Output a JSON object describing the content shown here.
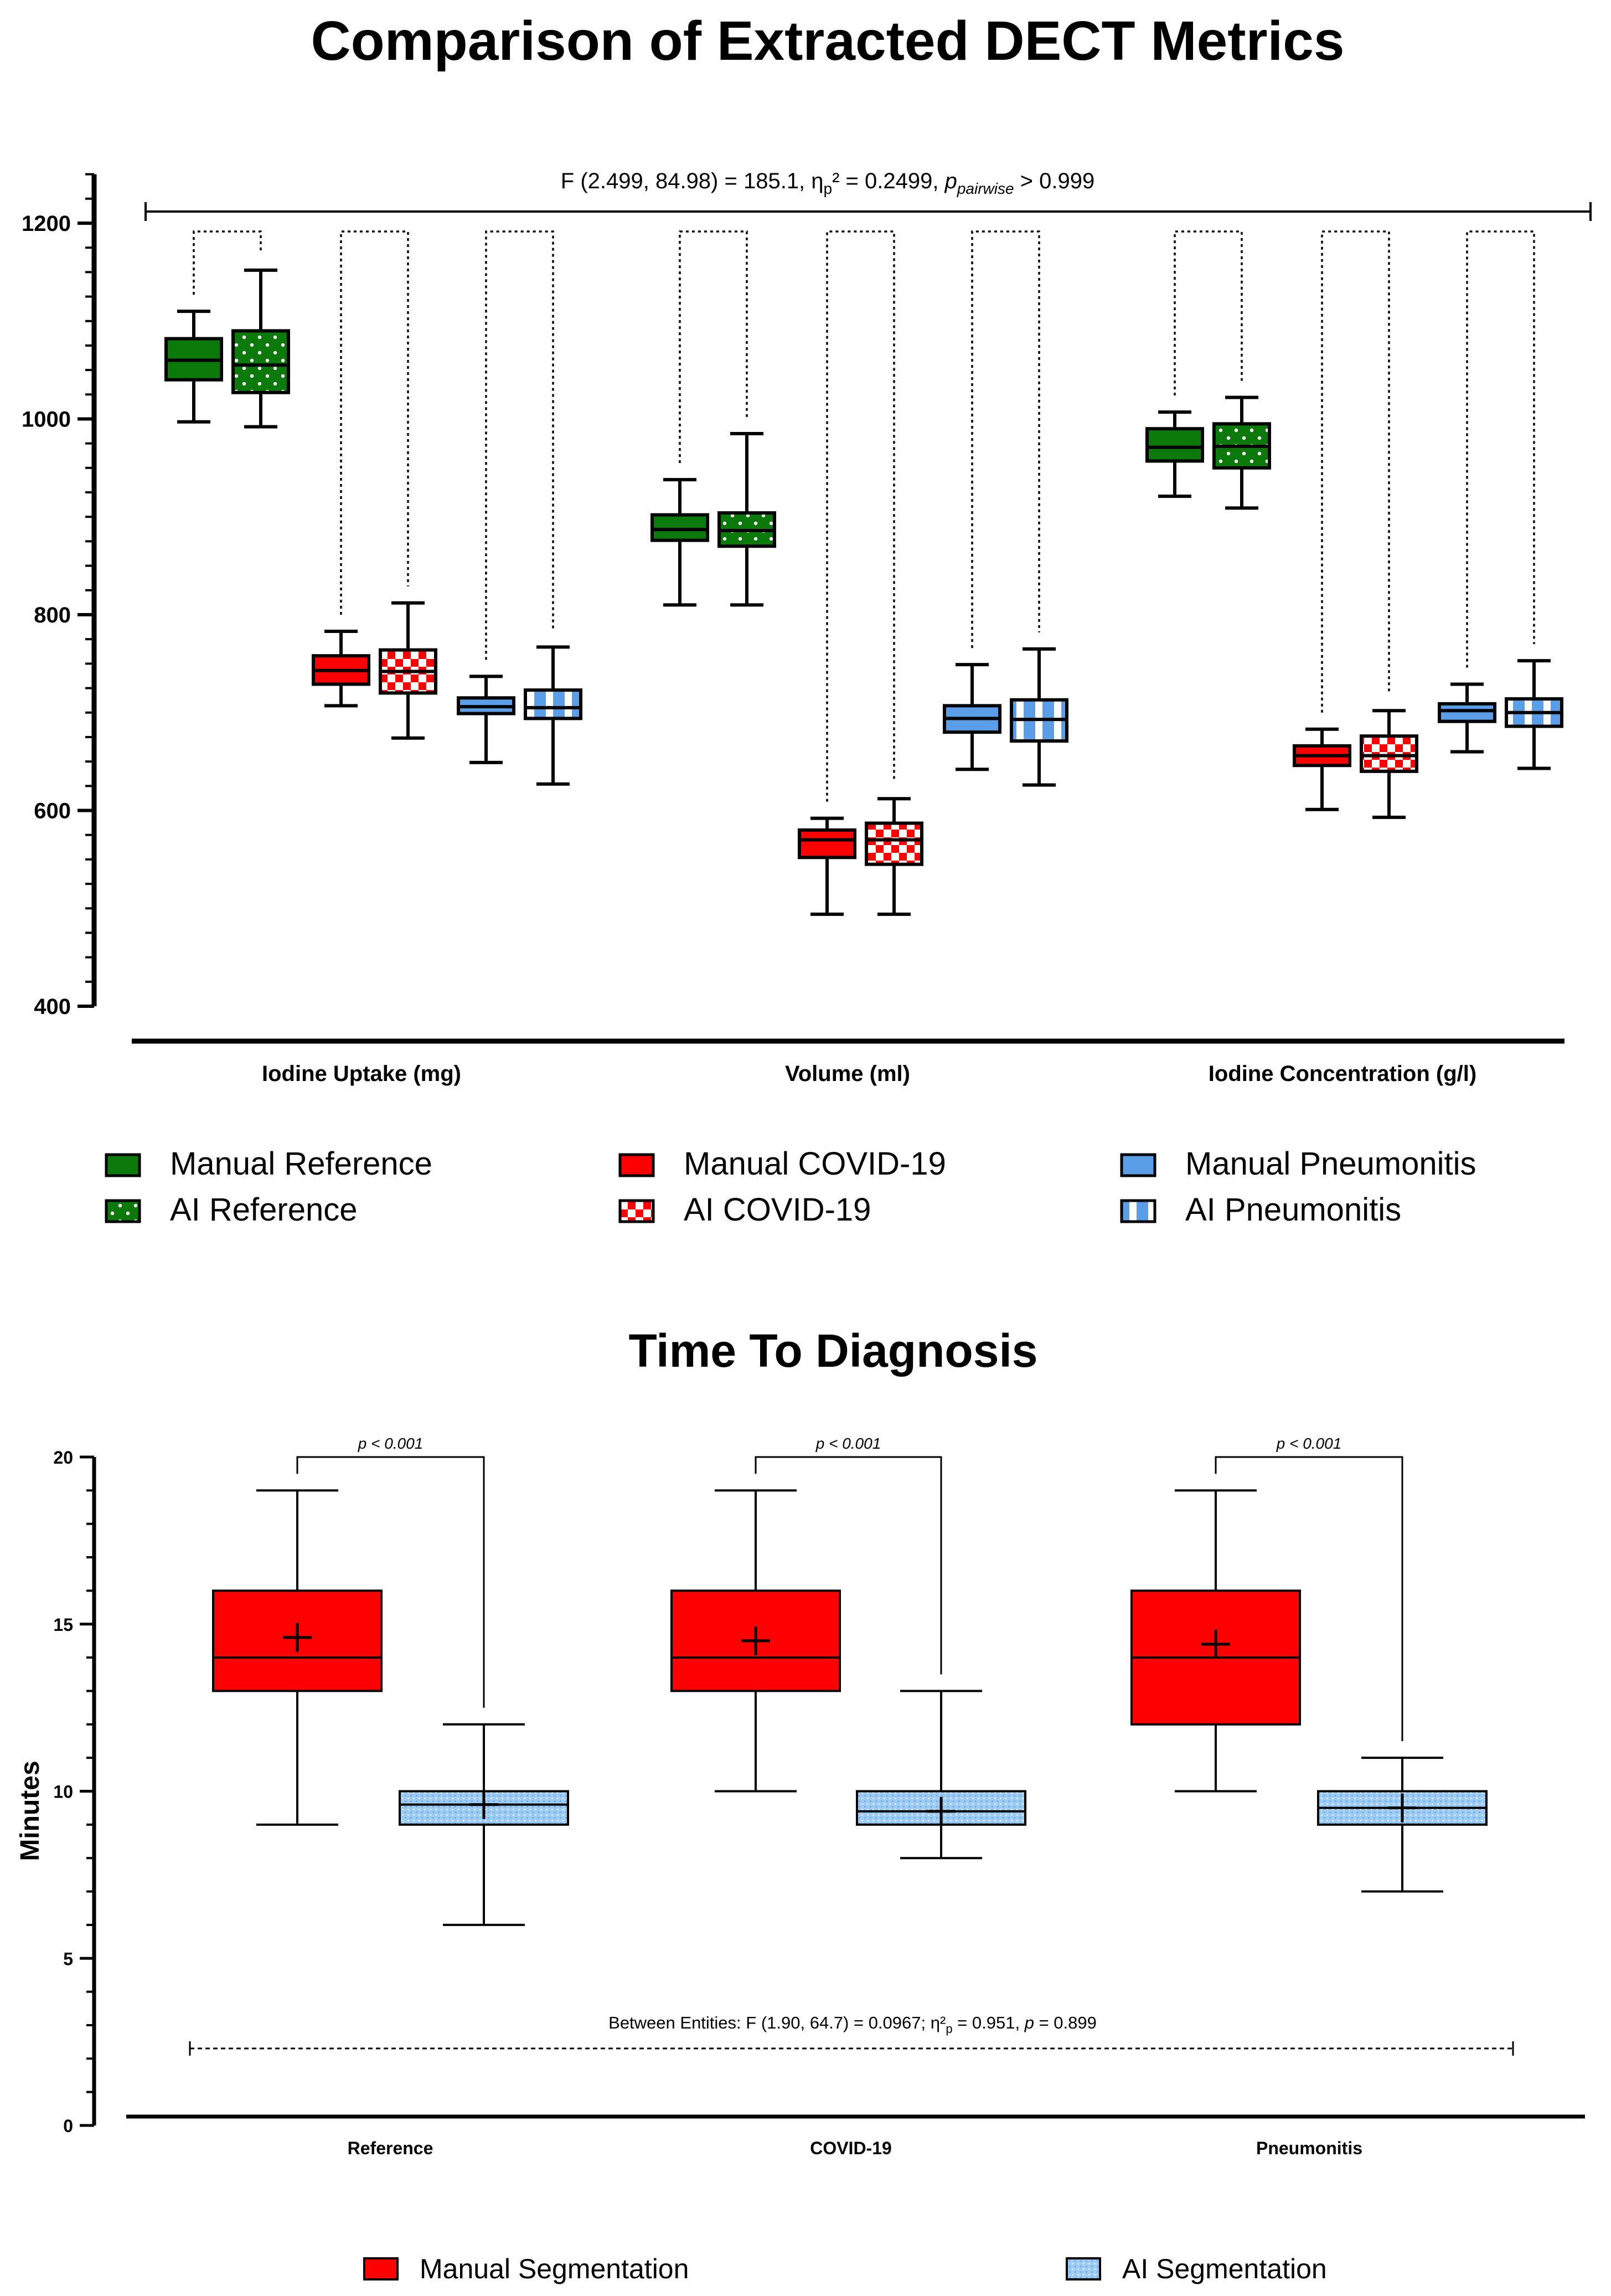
{
  "colors": {
    "green": "#0b7a0b",
    "red": "#ff0000",
    "blue": "#5b9ee8",
    "lightblue": "#9ccbf3",
    "black": "#000000"
  },
  "chart_data": [
    {
      "id": "dect",
      "type": "boxplot",
      "title": "Comparison of Extracted DECT Metrics",
      "ylim": [
        400,
        1250
      ],
      "yticks": [
        400,
        600,
        800,
        1000,
        1200
      ],
      "ylabel": "",
      "annotation": {
        "prefix": "F (2.499, 84.98) = 185.1, η",
        "sub1": "p",
        "mid": "² = 0.2499, ",
        "p": "p",
        "psub": "pairwise",
        "suffix": " > 0.999"
      },
      "categories": [
        "Iodine Uptake (mg)",
        "Volume (ml)",
        "Iodine Concentration (g/l)"
      ],
      "series": [
        {
          "name": "Manual Reference",
          "color": "green",
          "pattern": "solid"
        },
        {
          "name": "AI Reference",
          "color": "green",
          "pattern": "dots"
        },
        {
          "name": "Manual COVID-19",
          "color": "red",
          "pattern": "solid"
        },
        {
          "name": "AI COVID-19",
          "color": "red",
          "pattern": "checker"
        },
        {
          "name": "Manual Pneumonitis",
          "color": "blue",
          "pattern": "solid"
        },
        {
          "name": "AI Pneumonitis",
          "color": "blue",
          "pattern": "stripes"
        }
      ],
      "boxes": [
        [
          {
            "min": 997,
            "q1": 1040,
            "median": 1060,
            "q3": 1082,
            "max": 1110
          },
          {
            "min": 992,
            "q1": 1027,
            "median": 1055,
            "q3": 1090,
            "max": 1152
          },
          {
            "min": 707,
            "q1": 729,
            "median": 743,
            "q3": 758,
            "max": 783
          },
          {
            "min": 674,
            "q1": 720,
            "median": 742,
            "q3": 764,
            "max": 812
          },
          {
            "min": 649,
            "q1": 699,
            "median": 706,
            "q3": 715,
            "max": 737
          },
          {
            "min": 627,
            "q1": 694,
            "median": 705,
            "q3": 723,
            "max": 767
          }
        ],
        [
          {
            "min": 810,
            "q1": 876,
            "median": 887,
            "q3": 902,
            "max": 938
          },
          {
            "min": 810,
            "q1": 870,
            "median": 886,
            "q3": 904,
            "max": 985
          },
          {
            "min": 494,
            "q1": 552,
            "median": 570,
            "q3": 580,
            "max": 592
          },
          {
            "min": 494,
            "q1": 545,
            "median": 570,
            "q3": 587,
            "max": 612
          },
          {
            "min": 642,
            "q1": 680,
            "median": 694,
            "q3": 707,
            "max": 749
          },
          {
            "min": 626,
            "q1": 671,
            "median": 693,
            "q3": 713,
            "max": 765
          }
        ],
        [
          {
            "min": 921,
            "q1": 957,
            "median": 971,
            "q3": 990,
            "max": 1007
          },
          {
            "min": 909,
            "q1": 950,
            "median": 972,
            "q3": 995,
            "max": 1022
          },
          {
            "min": 601,
            "q1": 646,
            "median": 656,
            "q3": 666,
            "max": 683
          },
          {
            "min": 593,
            "q1": 640,
            "median": 656,
            "q3": 676,
            "max": 702
          },
          {
            "min": 660,
            "q1": 691,
            "median": 702,
            "q3": 709,
            "max": 729
          },
          {
            "min": 643,
            "q1": 686,
            "median": 700,
            "q3": 714,
            "max": 753
          }
        ]
      ]
    },
    {
      "id": "time",
      "type": "boxplot",
      "title": "Time To Diagnosis",
      "ylabel": "Minutes",
      "ylim": [
        0,
        20
      ],
      "yticks": [
        0,
        5,
        10,
        15,
        20
      ],
      "categories": [
        "Reference",
        "COVID-19",
        "Pneumonitis"
      ],
      "series": [
        {
          "name": "Manual Segmentation",
          "color": "red",
          "pattern": "solid"
        },
        {
          "name": "AI Segmentation",
          "color": "lightblue",
          "pattern": "texture"
        }
      ],
      "boxes": [
        [
          {
            "min": 9,
            "q1": 13,
            "median": 14,
            "q3": 16,
            "max": 19,
            "mean": 14.6
          },
          {
            "min": 6,
            "q1": 9,
            "median": 9.6,
            "q3": 10,
            "max": 12,
            "mean": 9.6
          }
        ],
        [
          {
            "min": 10,
            "q1": 13,
            "median": 14,
            "q3": 16,
            "max": 19,
            "mean": 14.5
          },
          {
            "min": 8,
            "q1": 9,
            "median": 9.4,
            "q3": 10,
            "max": 13,
            "mean": 9.4
          }
        ],
        [
          {
            "min": 10,
            "q1": 12,
            "median": 14,
            "q3": 16,
            "max": 19,
            "mean": 14.4
          },
          {
            "min": 7,
            "q1": 9,
            "median": 9.5,
            "q3": 10,
            "max": 11,
            "mean": 9.5
          }
        ]
      ],
      "pair_label": "p < 0.001",
      "annotation": {
        "prefix": "Between Entities: F (1.90, 64.7) = 0.0967; η²",
        "sub": "p",
        "mid": " = 0.951, ",
        "p": "p",
        "suffix": " = 0.899"
      }
    }
  ]
}
